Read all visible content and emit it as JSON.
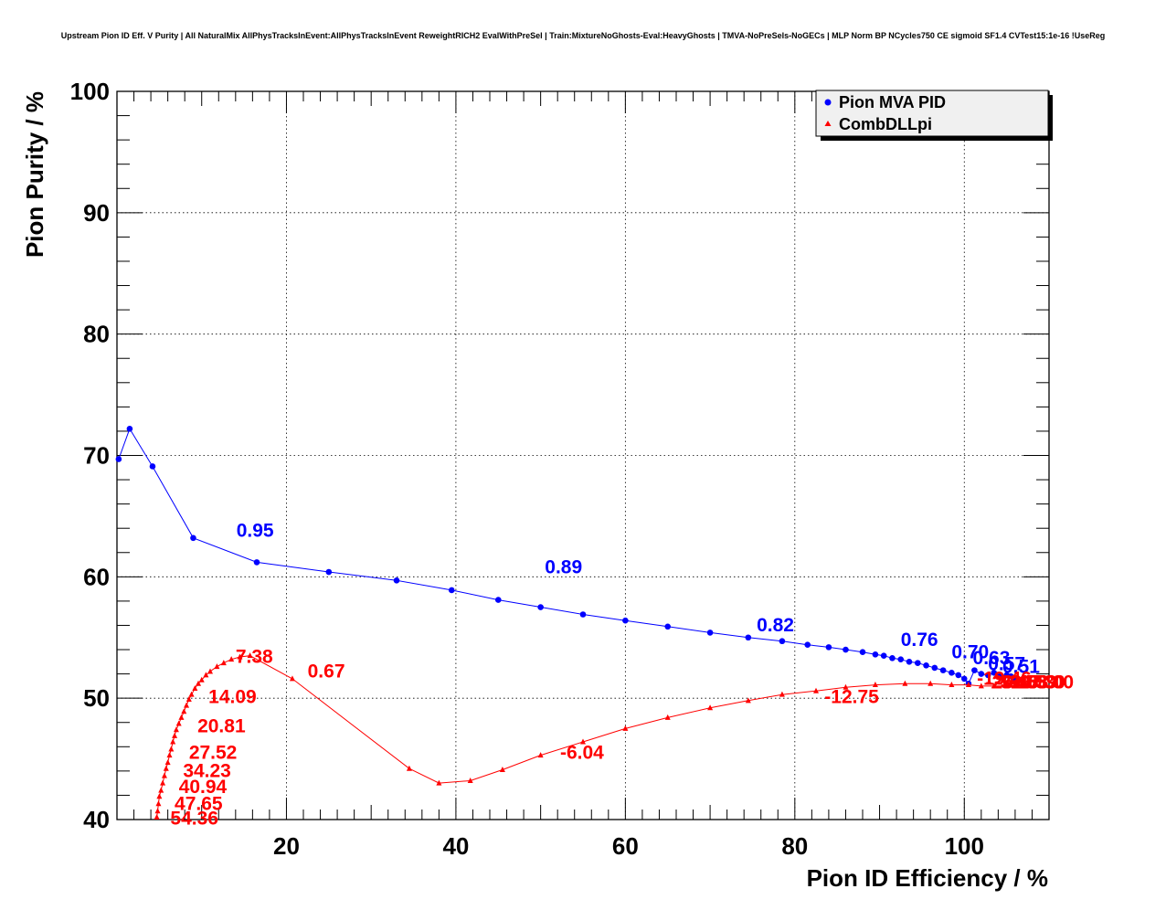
{
  "chart_data": {
    "type": "line",
    "title": "Upstream Pion ID Eff. V Purity | All NaturalMix AllPhysTracksInEvent:AllPhysTracksInEvent ReweightRICH2 EvalWithPreSel | Train:MixtureNoGhosts-Eval:HeavyGhosts | TMVA-NoPreSels-NoGECs | MLP Norm BP NCycles750 CE sigmoid SF1.4 CVTest15:1e-16 !UseReg",
    "xlabel": "Pion ID Efficiency / %",
    "ylabel": "Pion Purity / %",
    "xlim": [
      0,
      110
    ],
    "ylim": [
      40,
      100
    ],
    "xticks": [
      20,
      40,
      60,
      80,
      100
    ],
    "yticks": [
      40,
      50,
      60,
      70,
      80,
      90,
      100
    ],
    "grid": true,
    "legend_position": "top-right",
    "series": [
      {
        "name": "Pion MVA PID",
        "color": "#0000ff",
        "marker": "circle",
        "x": [
          0.2,
          1.5,
          4.2,
          9.0,
          16.5,
          25.0,
          33.0,
          39.5,
          45.0,
          50.0,
          55.0,
          60.0,
          65.0,
          70.0,
          74.5,
          78.5,
          81.5,
          84.0,
          86.0,
          88.0,
          89.5,
          90.5,
          91.5,
          92.5,
          93.5,
          94.5,
          95.5,
          96.5,
          97.5,
          98.5,
          99.3,
          100.0,
          100.5,
          101.2,
          102.0,
          102.8,
          103.5,
          104.2,
          105.0,
          105.5,
          106.0
        ],
        "y": [
          69.7,
          72.2,
          69.1,
          63.2,
          61.2,
          60.4,
          59.7,
          58.9,
          58.1,
          57.5,
          56.9,
          56.4,
          55.9,
          55.4,
          55.0,
          54.7,
          54.4,
          54.2,
          54.0,
          53.8,
          53.6,
          53.5,
          53.3,
          53.2,
          53.0,
          52.9,
          52.7,
          52.5,
          52.3,
          52.1,
          51.9,
          51.6,
          51.2,
          52.3,
          52.0,
          51.9,
          52.1,
          51.8,
          51.9,
          51.8,
          51.6
        ],
        "labels": [
          {
            "text": "0.95",
            "x": 14.1,
            "y": 63.3
          },
          {
            "text": "0.89",
            "x": 50.5,
            "y": 60.3
          },
          {
            "text": "0.82",
            "x": 75.5,
            "y": 55.5
          },
          {
            "text": "0.76",
            "x": 92.5,
            "y": 54.3
          },
          {
            "text": "0.70",
            "x": 98.5,
            "y": 53.3
          },
          {
            "text": "0.63",
            "x": 101.0,
            "y": 52.8
          },
          {
            "text": "0.57",
            "x": 102.8,
            "y": 52.3
          },
          {
            "text": "0.51",
            "x": 104.5,
            "y": 52.1
          }
        ]
      },
      {
        "name": "CombDLLpi",
        "color": "#ff0000",
        "marker": "triangle",
        "x": [
          4.7,
          4.8,
          4.9,
          5.0,
          5.2,
          5.4,
          5.6,
          5.8,
          6.0,
          6.2,
          6.4,
          6.6,
          6.8,
          7.0,
          7.3,
          7.6,
          7.9,
          8.2,
          8.5,
          8.8,
          9.2,
          9.6,
          10.0,
          10.5,
          11.0,
          11.8,
          12.6,
          13.5,
          14.5,
          15.7,
          20.7,
          34.5,
          38.0,
          41.7,
          45.5,
          50.0,
          55.0,
          60.0,
          65.0,
          70.0,
          74.5,
          78.5,
          82.5,
          86.0,
          89.5,
          93.0,
          96.0,
          98.5,
          100.5,
          102.0,
          103.5,
          105.0,
          106.0,
          107.0
        ],
        "y": [
          40.2,
          40.7,
          41.3,
          41.9,
          42.4,
          43.0,
          43.6,
          44.2,
          44.7,
          45.3,
          45.8,
          46.4,
          46.9,
          47.4,
          47.9,
          48.4,
          48.9,
          49.4,
          49.9,
          50.3,
          50.8,
          51.2,
          51.5,
          51.9,
          52.2,
          52.6,
          52.9,
          53.2,
          53.4,
          53.5,
          51.6,
          44.2,
          43.0,
          43.2,
          44.1,
          45.3,
          46.4,
          47.5,
          48.4,
          49.2,
          49.8,
          50.3,
          50.6,
          50.9,
          51.1,
          51.2,
          51.2,
          51.1,
          51.1,
          51.0,
          51.0,
          51.0,
          51.0,
          51.0
        ],
        "labels": [
          {
            "text": "7.38",
            "x": 14.0,
            "y": 52.9
          },
          {
            "text": "0.67",
            "x": 22.5,
            "y": 51.7
          },
          {
            "text": "14.09",
            "x": 10.8,
            "y": 49.6
          },
          {
            "text": "20.81",
            "x": 9.5,
            "y": 47.2
          },
          {
            "text": "27.52",
            "x": 8.5,
            "y": 45.0
          },
          {
            "text": "34.23",
            "x": 7.8,
            "y": 43.5
          },
          {
            "text": "40.94",
            "x": 7.3,
            "y": 42.2
          },
          {
            "text": "47.65",
            "x": 6.8,
            "y": 40.8
          },
          {
            "text": "54.36",
            "x": 6.3,
            "y": 39.6
          },
          {
            "text": "-6.04",
            "x": 52.3,
            "y": 45.0
          },
          {
            "text": "-12.75",
            "x": 83.5,
            "y": 49.6
          },
          {
            "text": "-19.46",
            "x": 101.5,
            "y": 51.1
          },
          {
            "text": "-26.17",
            "x": 102.5,
            "y": 50.8
          },
          {
            "text": "-32.88",
            "x": 103.5,
            "y": 50.8
          },
          {
            "text": "-39.59",
            "x": 104.5,
            "y": 50.8
          },
          {
            "text": "-46.30",
            "x": 105.5,
            "y": 50.8
          },
          {
            "text": "-53.00",
            "x": 106.5,
            "y": 50.8
          }
        ]
      }
    ]
  }
}
